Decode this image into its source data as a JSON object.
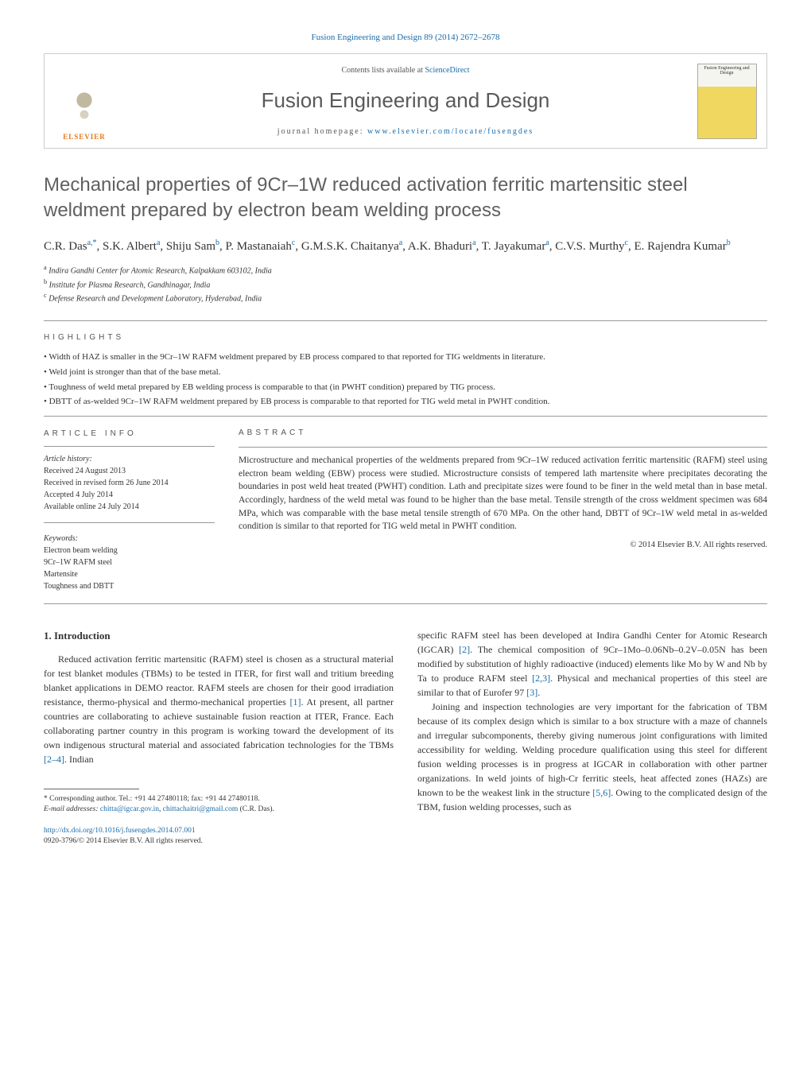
{
  "header": {
    "citation": "Fusion Engineering and Design 89 (2014) 2672–2678",
    "contents_prefix": "Contents lists available at ",
    "contents_link": "ScienceDirect",
    "journal_name": "Fusion Engineering and Design",
    "homepage_prefix": "journal homepage: ",
    "homepage_link": "www.elsevier.com/locate/fusengdes",
    "publisher_label": "ELSEVIER",
    "cover_label": "Fusion Engineering and Design"
  },
  "title": "Mechanical properties of 9Cr–1W reduced activation ferritic martensitic steel weldment prepared by electron beam welding process",
  "authors_html": "C.R. Das<sup>a,*</sup>, S.K. Albert<sup>a</sup>, Shiju Sam<sup>b</sup>, P. Mastanaiah<sup>c</sup>, G.M.S.K. Chaitanya<sup>a</sup>, A.K. Bhaduri<sup>a</sup>, T. Jayakumar<sup>a</sup>, C.V.S. Murthy<sup>c</sup>, E. Rajendra Kumar<sup>b</sup>",
  "affiliations": {
    "a": "Indira Gandhi Center for Atomic Research, Kalpakkam 603102, India",
    "b": "Institute for Plasma Research, Gandhinagar, India",
    "c": "Defense Research and Development Laboratory, Hyderabad, India"
  },
  "highlights_heading": "HIGHLIGHTS",
  "highlights": [
    "Width of HAZ is smaller in the 9Cr–1W RAFM weldment prepared by EB process compared to that reported for TIG weldments in literature.",
    "Weld joint is stronger than that of the base metal.",
    "Toughness of weld metal prepared by EB welding process is comparable to that (in PWHT condition) prepared by TIG process.",
    "DBTT of as-welded 9Cr–1W RAFM weldment prepared by EB process is comparable to that reported for TIG weld metal in PWHT condition."
  ],
  "article_info_heading": "ARTICLE INFO",
  "article_info": {
    "history_label": "Article history:",
    "received": "Received 24 August 2013",
    "revised": "Received in revised form 26 June 2014",
    "accepted": "Accepted 4 July 2014",
    "online": "Available online 24 July 2014",
    "keywords_label": "Keywords:",
    "keywords": [
      "Electron beam welding",
      "9Cr–1W RAFM steel",
      "Martensite",
      "Toughness and DBTT"
    ]
  },
  "abstract_heading": "ABSTRACT",
  "abstract": "Microstructure and mechanical properties of the weldments prepared from 9Cr–1W reduced activation ferritic martensitic (RAFM) steel using electron beam welding (EBW) process were studied. Microstructure consists of tempered lath martensite where precipitates decorating the boundaries in post weld heat treated (PWHT) condition. Lath and precipitate sizes were found to be finer in the weld metal than in base metal. Accordingly, hardness of the weld metal was found to be higher than the base metal. Tensile strength of the cross weldment specimen was 684 MPa, which was comparable with the base metal tensile strength of 670 MPa. On the other hand, DBTT of 9Cr–1W weld metal in as-welded condition is similar to that reported for TIG weld metal in PWHT condition.",
  "copyright": "© 2014 Elsevier B.V. All rights reserved.",
  "intro": {
    "heading": "1. Introduction",
    "col1": "Reduced activation ferritic martensitic (RAFM) steel is chosen as a structural material for test blanket modules (TBMs) to be tested in ITER, for first wall and tritium breeding blanket applications in DEMO reactor. RAFM steels are chosen for their good irradiation resistance, thermo-physical and thermo-mechanical properties <span class=\"ref\">[1]</span>. At present, all partner countries are collaborating to achieve sustainable fusion reaction at ITER, France. Each collaborating partner country in this program is working toward the development of its own indigenous structural material and associated fabrication technologies for the TBMs <span class=\"ref\">[2–4]</span>. Indian",
    "col2_p1": "specific RAFM steel has been developed at Indira Gandhi Center for Atomic Research (IGCAR) <span class=\"ref\">[2]</span>. The chemical composition of 9Cr–1Mo–0.06Nb–0.2V–0.05N has been modified by substitution of highly radioactive (induced) elements like Mo by W and Nb by Ta to produce RAFM steel <span class=\"ref\">[2,3]</span>. Physical and mechanical properties of this steel are similar to that of Eurofer 97 <span class=\"ref\">[3]</span>.",
    "col2_p2": "Joining and inspection technologies are very important for the fabrication of TBM because of its complex design which is similar to a box structure with a maze of channels and irregular subcomponents, thereby giving numerous joint configurations with limited accessibility for welding. Welding procedure qualification using this steel for different fusion welding processes is in progress at IGCAR in collaboration with other partner organizations. In weld joints of high-Cr ferritic steels, heat affected zones (HAZs) are known to be the weakest link in the structure <span class=\"ref\">[5,6]</span>. Owing to the complicated design of the TBM, fusion welding processes, such as"
  },
  "footnotes": {
    "corr_label": "* Corresponding author. Tel.: +91 44 27480118; fax: +91 44 27480118.",
    "email_label": "E-mail addresses:",
    "email1": "chitta@igcar.gov.in",
    "email2": "chittachaitri@gmail.com",
    "email_suffix": " (C.R. Das)."
  },
  "doi": {
    "url": "http://dx.doi.org/10.1016/j.fusengdes.2014.07.001",
    "issn_line": "0920-3796/© 2014 Elsevier B.V. All rights reserved."
  },
  "colors": {
    "link": "#1a6ba8",
    "elsevier_orange": "#e67817",
    "text": "#333333",
    "heading_gray": "#606060"
  }
}
